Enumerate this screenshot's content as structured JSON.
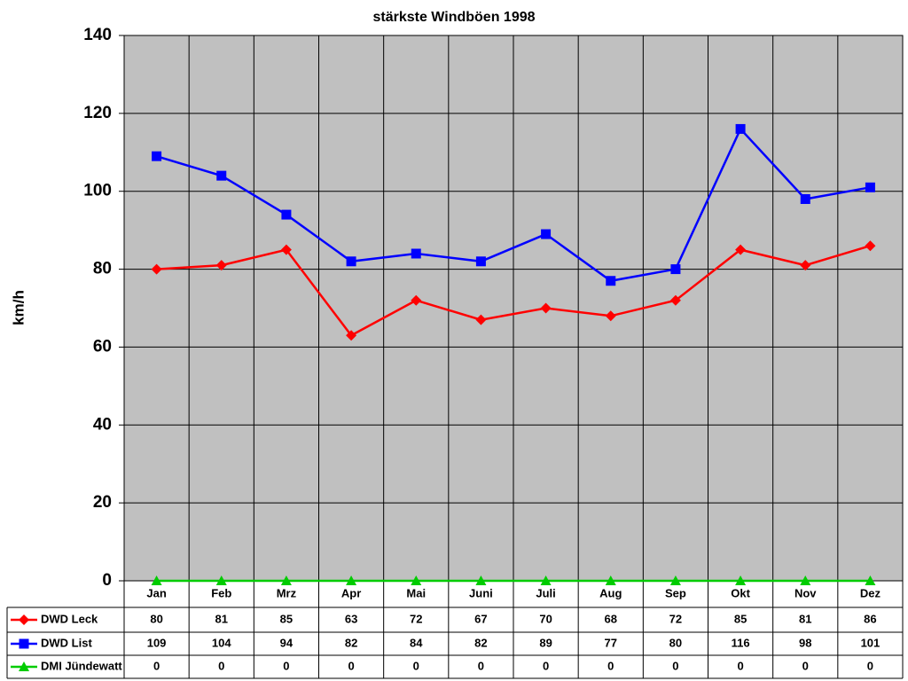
{
  "chart_data": {
    "type": "line",
    "title": "stärkste Windböen 1998",
    "y_label": "km/h",
    "categories": [
      "Jan",
      "Feb",
      "Mrz",
      "Apr",
      "Mai",
      "Juni",
      "Juli",
      "Aug",
      "Sep",
      "Okt",
      "Nov",
      "Dez"
    ],
    "series": [
      {
        "name": "DWD Leck",
        "color": "#ff0000",
        "marker": "diamond",
        "values": [
          80,
          81,
          85,
          63,
          72,
          67,
          70,
          68,
          72,
          85,
          81,
          86
        ]
      },
      {
        "name": "DWD List",
        "color": "#0000ff",
        "marker": "square",
        "values": [
          109,
          104,
          94,
          82,
          84,
          82,
          89,
          77,
          80,
          116,
          98,
          101
        ]
      },
      {
        "name": "DMI Jündewatt",
        "color": "#00cc00",
        "marker": "triangle",
        "values": [
          0,
          0,
          0,
          0,
          0,
          0,
          0,
          0,
          0,
          0,
          0,
          0
        ]
      }
    ],
    "ylim": [
      0,
      140
    ],
    "yticks": [
      0,
      20,
      40,
      60,
      80,
      100,
      120,
      140
    ],
    "grid": true,
    "plot_background": "#c0c0c0",
    "data_table": true
  }
}
